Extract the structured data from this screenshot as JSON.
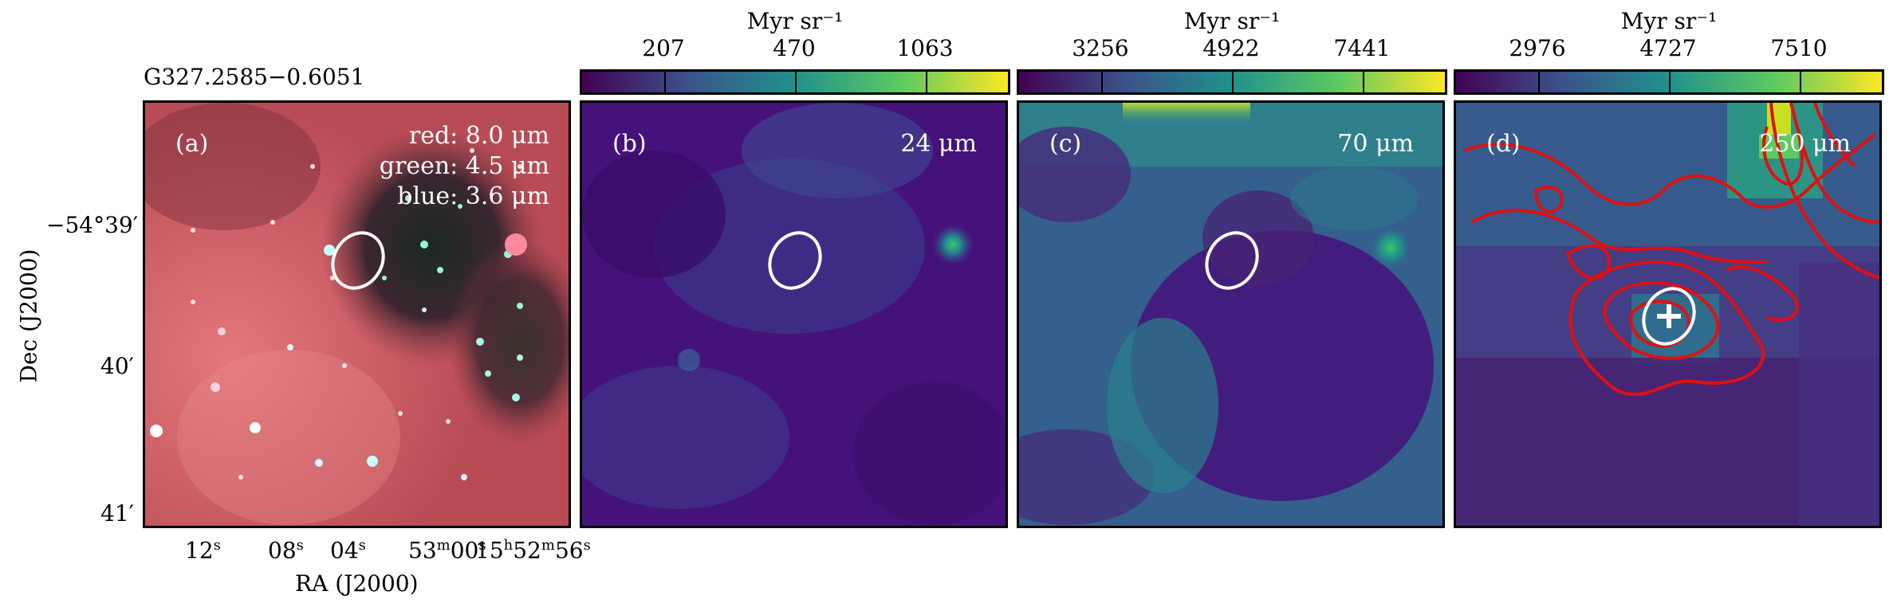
{
  "source_name": "G327.2585−0.6051",
  "axes": {
    "xlabel": "RA (J2000)",
    "ylabel": "Dec (J2000)",
    "y_ticks": [
      "−54°39′",
      "40′",
      "41′"
    ],
    "x_ticks": [
      "12",
      "08",
      "04",
      "53",
      "00",
      "15",
      "52",
      "56"
    ],
    "x_tick_units": [
      "s",
      "s",
      "s",
      "m",
      "s",
      "h",
      "m",
      "s"
    ]
  },
  "panels": [
    {
      "label": "(a)",
      "legend": [
        "red: 8.0 μm",
        "green: 4.5 μm",
        "blue: 3.6 μm"
      ]
    },
    {
      "label": "(b)",
      "wavelength": "24 μm"
    },
    {
      "label": "(c)",
      "wavelength": "70 μm"
    },
    {
      "label": "(d)",
      "wavelength": "250 μm"
    }
  ],
  "colorbars": [
    {
      "unit": "Myr sr⁻¹",
      "ticks": [
        "207",
        "470",
        "1063"
      ]
    },
    {
      "unit": "Myr sr⁻¹",
      "ticks": [
        "3256",
        "4922",
        "7441"
      ]
    },
    {
      "unit": "Myr sr⁻¹",
      "ticks": [
        "2976",
        "4727",
        "7510"
      ]
    }
  ],
  "colors": {
    "viridis_dark": "#440154",
    "viridis_mid": "#21918c",
    "viridis_light": "#fde725",
    "contour": "#e01010",
    "ellipse": "#ffffff",
    "rgb_base": "#c5555a"
  }
}
